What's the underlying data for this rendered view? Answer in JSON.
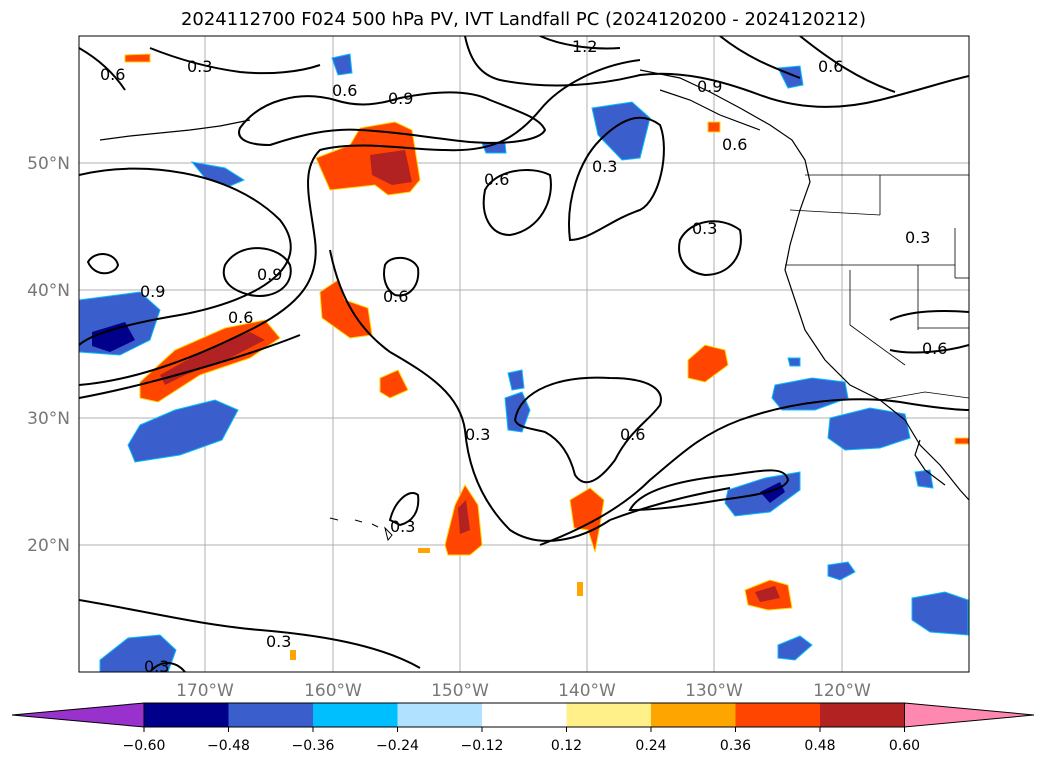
{
  "title": "2024112700 F024 500 hPa PV, IVT Landfall PC (2024120200 - 2024120212)",
  "lat_labels": [
    "50°N",
    "40°N",
    "30°N",
    "20°N"
  ],
  "lon_labels": [
    "170°W",
    "160°W",
    "150°W",
    "140°W",
    "130°W",
    "120°W"
  ],
  "contour_labels": [
    "1.2",
    "0.3",
    "0.6",
    "0.6",
    "0.9",
    "0.9",
    "0.6",
    "0.6",
    "0.3",
    "0.6",
    "0.3",
    "0.3",
    "0.9",
    "0.9",
    "0.6",
    "0.6",
    "0.3",
    "0.6",
    "0.3",
    "0.3",
    "0.3",
    "0.6"
  ],
  "colorbar": {
    "ticks": [
      "−0.60",
      "−0.48",
      "−0.36",
      "−0.24",
      "−0.12",
      "0.12",
      "0.24",
      "0.36",
      "0.48",
      "0.60"
    ],
    "colors": [
      "#9932cc",
      "#00008b",
      "#3a5fcd",
      "#00bfff",
      "#b0e2ff",
      "#ffffff",
      "#fff08a",
      "#ffa500",
      "#ff4500",
      "#b22222",
      "#ff88b0"
    ]
  }
}
